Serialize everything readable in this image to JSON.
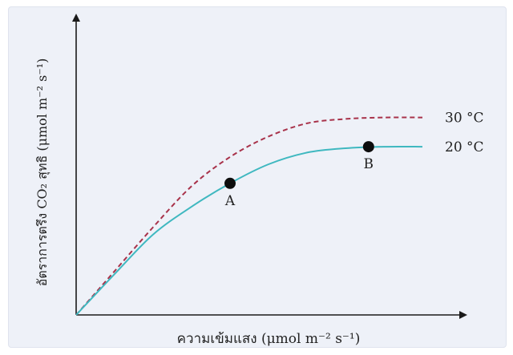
{
  "chart_data": {
    "type": "line",
    "title": "",
    "xlabel": "ความเข้มแสง (μmol m⁻² s⁻¹)",
    "ylabel": "อัตราการตรึง CO₂ สุทธิ (μmol m⁻² s⁻¹)",
    "x_range": [
      0,
      100
    ],
    "y_range": [
      0,
      100
    ],
    "series": [
      {
        "name": "30 °C",
        "style": "dashed",
        "color": "#a8324a",
        "x": [
          0,
          10,
          20,
          30,
          40,
          50,
          60,
          70,
          80,
          90
        ],
        "y": [
          0,
          15,
          30,
          44,
          54,
          61,
          65.5,
          67,
          67.5,
          67.5
        ]
      },
      {
        "name": "20 °C",
        "style": "solid",
        "color": "#3fb8c0",
        "x": [
          0,
          10,
          20,
          30,
          40,
          50,
          60,
          70,
          80,
          90
        ],
        "y": [
          0,
          14,
          27.5,
          37,
          45,
          51.5,
          55.5,
          57,
          57.5,
          57.5
        ]
      }
    ],
    "points": [
      {
        "label": "A",
        "x": 40,
        "y": 45
      },
      {
        "label": "B",
        "x": 76,
        "y": 57.5
      }
    ],
    "grid": false,
    "legend": "inline-right"
  }
}
